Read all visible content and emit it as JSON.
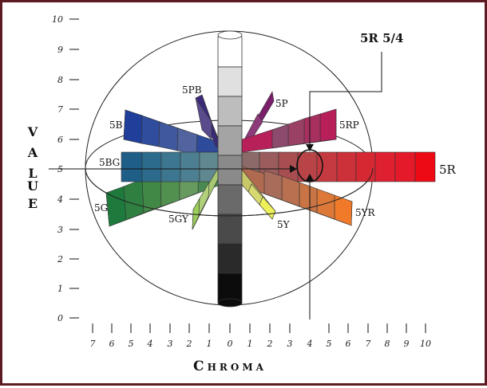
{
  "axes": {
    "value_title": "VALUE",
    "chroma_title_first": "C",
    "chroma_title_rest": "HROMA",
    "value_ticks": [
      "0",
      "1",
      "2",
      "3",
      "4",
      "5",
      "6",
      "7",
      "8",
      "9",
      "10"
    ],
    "chroma_ticks": [
      "7",
      "6",
      "5",
      "4",
      "3",
      "2",
      "1",
      "0",
      "1",
      "2",
      "3",
      "4",
      "5",
      "6",
      "7",
      "8",
      "9",
      "10"
    ]
  },
  "hues": {
    "r": "5R",
    "yr": "5YR",
    "y": "5Y",
    "gy": "5GY",
    "g": "5G",
    "bg": "5BG",
    "b": "5B",
    "pb": "5PB",
    "p": "5P",
    "rp": "5RP"
  },
  "callout": "5R 5/4",
  "colors": {
    "frame": "#5c1a22",
    "red": "#e8161c",
    "blue_green": "#1f5e86",
    "green": "#1d7a3c",
    "yellow_red": "#f07a2a",
    "yellow": "#eef05a",
    "green_yellow": "#9acd5a",
    "blue": "#1f3f9a",
    "purple_blue": "#3b2a7a",
    "purple": "#7a1f6a",
    "red_purple": "#b8205a"
  }
}
